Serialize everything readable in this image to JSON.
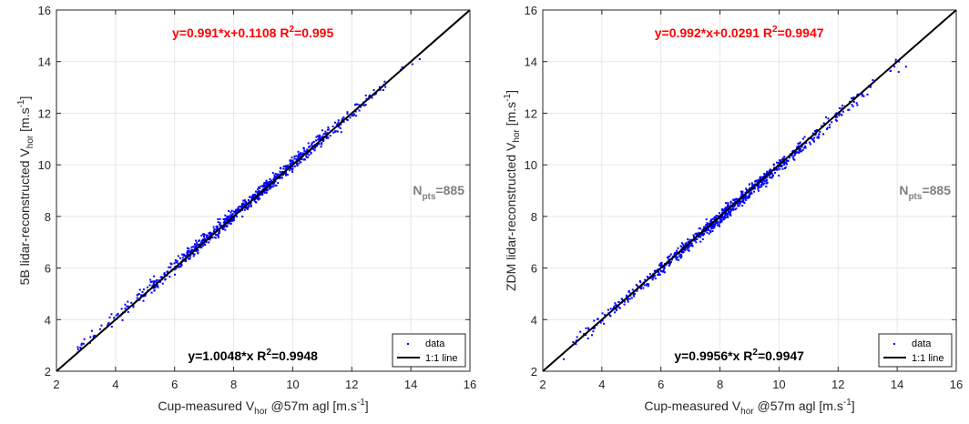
{
  "colors": {
    "data": "#0000ff",
    "fit_top": "#ff0000",
    "fit_bottom": "#000000",
    "npts": "#808080",
    "grid": "#e6e6e6"
  },
  "chart_data": [
    {
      "type": "scatter",
      "xlabel": {
        "main": "Cup-measured V",
        "sub": "hor",
        "rest": " @57m agl [m.s",
        "sup": "-1",
        "end": "]"
      },
      "ylabel": {
        "main": "5B lidar-reconstructed V",
        "sub": "hor",
        "rest": " [m.s",
        "sup": "-1",
        "end": "]"
      },
      "xlim": [
        2,
        16
      ],
      "ylim": [
        2,
        16
      ],
      "xticks": [
        "2",
        "4",
        "6",
        "8",
        "10",
        "12",
        "14",
        "16"
      ],
      "yticks": [
        "2",
        "4",
        "6",
        "8",
        "10",
        "12",
        "14",
        "16"
      ],
      "grid": true,
      "fit_top": {
        "eq": "y=0.991*x+0.1108",
        "r_pre": "R",
        "r_sup": "2",
        "r_post": "=0.995"
      },
      "fit_bottom": {
        "eq": "y=1.0048*x",
        "r_pre": "R",
        "r_sup": "2",
        "r_post": "=0.9948"
      },
      "npts": {
        "pre": "N",
        "sub": "pts",
        "post": "=885"
      },
      "legend": {
        "position": "bottom-right",
        "entries": [
          "data",
          "1:1 line"
        ]
      },
      "series": [
        {
          "name": "data",
          "style": "points",
          "slope": 0.991,
          "intercept": 0.1108,
          "n": 885,
          "x_range": [
            2.7,
            14.3
          ],
          "seed": 11
        },
        {
          "name": "1:1 line",
          "style": "line",
          "x": [
            2,
            16
          ],
          "y": [
            2,
            16
          ]
        }
      ]
    },
    {
      "type": "scatter",
      "xlabel": {
        "main": "Cup-measured V",
        "sub": "hor",
        "rest": " @57m agl [m.s",
        "sup": "-1",
        "end": "]"
      },
      "ylabel": {
        "main": "ZDM lidar-reconstructed V",
        "sub": "hor",
        "rest": " [m.s",
        "sup": "-1",
        "end": "]"
      },
      "xlim": [
        2,
        16
      ],
      "ylim": [
        2,
        16
      ],
      "xticks": [
        "2",
        "4",
        "6",
        "8",
        "10",
        "12",
        "14",
        "16"
      ],
      "yticks": [
        "2",
        "4",
        "6",
        "8",
        "10",
        "12",
        "14",
        "16"
      ],
      "grid": true,
      "fit_top": {
        "eq": "y=0.992*x+0.0291",
        "r_pre": "R",
        "r_sup": "2",
        "r_post": "=0.9947"
      },
      "fit_bottom": {
        "eq": "y=0.9956*x",
        "r_pre": "R",
        "r_sup": "2",
        "r_post": "=0.9947"
      },
      "npts": {
        "pre": "N",
        "sub": "pts",
        "post": "=885"
      },
      "legend": {
        "position": "bottom-right",
        "entries": [
          "data",
          "1:1 line"
        ]
      },
      "series": [
        {
          "name": "data",
          "style": "points",
          "slope": 0.992,
          "intercept": 0.0291,
          "n": 885,
          "x_range": [
            2.7,
            14.3
          ],
          "seed": 23
        },
        {
          "name": "1:1 line",
          "style": "line",
          "x": [
            2,
            16
          ],
          "y": [
            2,
            16
          ]
        }
      ]
    }
  ]
}
